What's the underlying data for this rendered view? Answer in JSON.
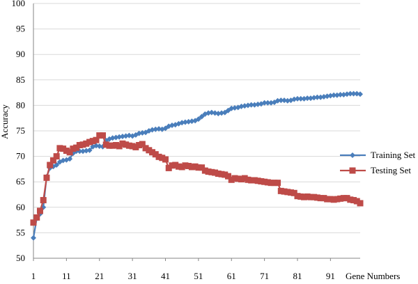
{
  "chart_data": {
    "type": "line",
    "title": "",
    "xlabel": "Gene Numbers",
    "ylabel": "Accuracy",
    "x": [
      1,
      2,
      3,
      4,
      5,
      6,
      7,
      8,
      9,
      10,
      11,
      12,
      13,
      14,
      15,
      16,
      17,
      18,
      19,
      20,
      21,
      22,
      23,
      24,
      25,
      26,
      27,
      28,
      29,
      30,
      31,
      32,
      33,
      34,
      35,
      36,
      37,
      38,
      39,
      40,
      41,
      42,
      43,
      44,
      45,
      46,
      47,
      48,
      49,
      50,
      51,
      52,
      53,
      54,
      55,
      56,
      57,
      58,
      59,
      60,
      61,
      62,
      63,
      64,
      65,
      66,
      67,
      68,
      69,
      70,
      71,
      72,
      73,
      74,
      75,
      76,
      77,
      78,
      79,
      80,
      81,
      82,
      83,
      84,
      85,
      86,
      87,
      88,
      89,
      90,
      91,
      92,
      93,
      94,
      95,
      96,
      97,
      98,
      99,
      100
    ],
    "xlim": [
      1,
      100
    ],
    "ylim": [
      50,
      100
    ],
    "x_ticks": [
      1,
      11,
      21,
      31,
      41,
      51,
      61,
      71,
      81,
      91
    ],
    "y_ticks": [
      50,
      55,
      60,
      65,
      70,
      75,
      80,
      85,
      90,
      95,
      100
    ],
    "grid": "horizontal",
    "legend_position": "right",
    "series": [
      {
        "name": "Training Set",
        "color": "#4A7EBB",
        "marker": "diamond",
        "values": [
          54.0,
          57.8,
          58.7,
          60.0,
          66.0,
          67.7,
          68.0,
          68.3,
          68.9,
          69.2,
          69.3,
          69.5,
          70.6,
          71.0,
          71.0,
          71.0,
          71.1,
          71.2,
          71.9,
          72.1,
          72.0,
          71.9,
          73.1,
          73.4,
          73.6,
          73.7,
          73.8,
          73.9,
          74.0,
          74.1,
          74.0,
          74.2,
          74.5,
          74.6,
          74.7,
          75.0,
          75.2,
          75.3,
          75.4,
          75.3,
          75.5,
          75.9,
          76.1,
          76.2,
          76.4,
          76.6,
          76.7,
          76.8,
          76.9,
          77.0,
          77.3,
          77.8,
          78.3,
          78.5,
          78.6,
          78.5,
          78.4,
          78.5,
          78.6,
          79.0,
          79.4,
          79.5,
          79.6,
          79.8,
          79.9,
          80.0,
          80.1,
          80.1,
          80.2,
          80.3,
          80.5,
          80.5,
          80.5,
          80.6,
          80.9,
          81.0,
          81.0,
          80.9,
          81.0,
          81.2,
          81.3,
          81.3,
          81.3,
          81.4,
          81.4,
          81.5,
          81.6,
          81.6,
          81.7,
          81.8,
          81.9,
          82.0,
          82.0,
          82.1,
          82.1,
          82.2,
          82.3,
          82.3,
          82.3,
          82.2
        ]
      },
      {
        "name": "Testing Set",
        "color": "#BE4B48",
        "marker": "square",
        "values": [
          57.0,
          58.0,
          59.3,
          61.4,
          65.8,
          68.3,
          69.2,
          70.0,
          71.6,
          71.5,
          71.1,
          70.8,
          71.5,
          71.7,
          72.2,
          72.3,
          72.5,
          72.8,
          73.0,
          73.2,
          74.1,
          74.1,
          72.3,
          72.1,
          72.1,
          72.2,
          72.0,
          72.5,
          72.3,
          72.1,
          72.0,
          71.8,
          72.2,
          72.4,
          71.6,
          71.2,
          70.8,
          70.4,
          69.9,
          69.7,
          69.4,
          67.7,
          68.2,
          68.3,
          68.0,
          67.9,
          68.2,
          68.1,
          67.9,
          68.0,
          67.8,
          67.8,
          67.2,
          67.0,
          66.9,
          66.8,
          66.6,
          66.5,
          66.4,
          66.1,
          65.4,
          65.7,
          65.6,
          65.5,
          65.7,
          65.4,
          65.3,
          65.3,
          65.2,
          65.1,
          65.0,
          64.9,
          64.8,
          64.8,
          64.8,
          63.2,
          63.1,
          63.0,
          62.9,
          62.8,
          62.2,
          62.1,
          62.0,
          62.1,
          62.0,
          62.0,
          61.9,
          61.8,
          61.8,
          61.6,
          61.6,
          61.5,
          61.6,
          61.7,
          61.8,
          61.8,
          61.5,
          61.4,
          61.2,
          60.8
        ]
      }
    ]
  }
}
